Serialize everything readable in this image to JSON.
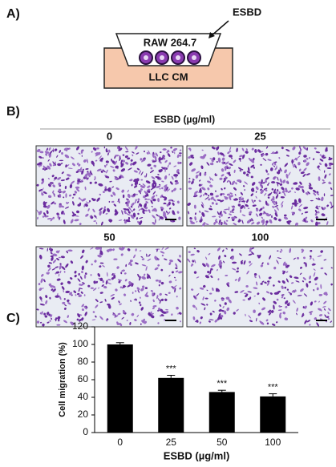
{
  "panel_a": {
    "label": "A)",
    "treatment": "ESBD",
    "cells": "RAW 264.7",
    "medium": "LLC CM"
  },
  "panel_b": {
    "label": "B)",
    "header": "ESBD (µg/ml)",
    "images": [
      {
        "label": "0"
      },
      {
        "label": "25"
      },
      {
        "label": "50"
      },
      {
        "label": "100"
      }
    ]
  },
  "panel_c": {
    "label": "C)"
  },
  "chart_data": {
    "type": "bar",
    "x_label": "ESBD (µg/ml)",
    "y_label": "Cell migration (%)",
    "categories": [
      "0",
      "25",
      "50",
      "100"
    ],
    "values": [
      100,
      62,
      46,
      41
    ],
    "errors": [
      2,
      3,
      2,
      3
    ],
    "annotations": [
      null,
      "***",
      "***",
      "***"
    ],
    "color": "#000000",
    "ylim": [
      0,
      120
    ],
    "yticks": [
      0,
      20,
      40,
      60,
      80,
      100,
      120
    ]
  }
}
